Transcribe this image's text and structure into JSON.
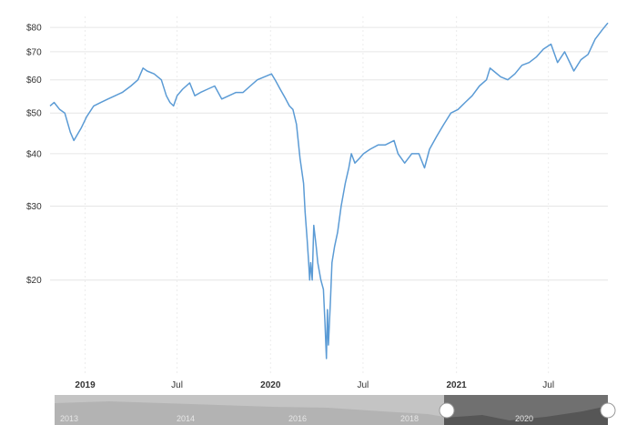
{
  "chart_data": {
    "type": "line",
    "y_scale": "log",
    "ylim": [
      12,
      85
    ],
    "grid": true,
    "y_ticks": [
      {
        "value": 20,
        "label": "$20"
      },
      {
        "value": 30,
        "label": "$30"
      },
      {
        "value": 40,
        "label": "$40"
      },
      {
        "value": 50,
        "label": "$50"
      },
      {
        "value": 60,
        "label": "$60"
      },
      {
        "value": 70,
        "label": "$70"
      },
      {
        "value": 80,
        "label": "$80"
      }
    ],
    "x_ticks": [
      {
        "date": "2019-01-01",
        "label": "2019",
        "bold": true
      },
      {
        "date": "2019-07-01",
        "label": "Jul",
        "bold": false
      },
      {
        "date": "2020-01-01",
        "label": "2020",
        "bold": true
      },
      {
        "date": "2020-07-01",
        "label": "Jul",
        "bold": false
      },
      {
        "date": "2021-01-01",
        "label": "2021",
        "bold": true
      },
      {
        "date": "2021-07-01",
        "label": "Jul",
        "bold": false
      }
    ],
    "series": [
      {
        "color": "#5b9bd5",
        "points": [
          [
            "2018-10-24",
            52
          ],
          [
            "2018-11-01",
            53
          ],
          [
            "2018-11-12",
            51
          ],
          [
            "2018-11-22",
            50
          ],
          [
            "2018-12-03",
            45
          ],
          [
            "2018-12-10",
            43
          ],
          [
            "2018-12-24",
            46
          ],
          [
            "2019-01-04",
            49
          ],
          [
            "2019-01-18",
            52
          ],
          [
            "2019-02-01",
            53
          ],
          [
            "2019-02-15",
            54
          ],
          [
            "2019-03-01",
            55
          ],
          [
            "2019-03-15",
            56
          ],
          [
            "2019-04-01",
            58
          ],
          [
            "2019-04-15",
            60
          ],
          [
            "2019-04-25",
            64
          ],
          [
            "2019-05-03",
            63
          ],
          [
            "2019-05-17",
            62
          ],
          [
            "2019-05-31",
            60
          ],
          [
            "2019-06-10",
            55
          ],
          [
            "2019-06-17",
            53
          ],
          [
            "2019-06-24",
            52
          ],
          [
            "2019-07-01",
            55
          ],
          [
            "2019-07-12",
            57
          ],
          [
            "2019-07-26",
            59
          ],
          [
            "2019-08-05",
            55
          ],
          [
            "2019-08-16",
            56
          ],
          [
            "2019-08-30",
            57
          ],
          [
            "2019-09-13",
            58
          ],
          [
            "2019-09-27",
            54
          ],
          [
            "2019-10-11",
            55
          ],
          [
            "2019-10-25",
            56
          ],
          [
            "2019-11-08",
            56
          ],
          [
            "2019-11-22",
            58
          ],
          [
            "2019-12-06",
            60
          ],
          [
            "2019-12-20",
            61
          ],
          [
            "2020-01-03",
            62
          ],
          [
            "2020-01-10",
            60
          ],
          [
            "2020-01-20",
            57
          ],
          [
            "2020-01-31",
            54
          ],
          [
            "2020-02-07",
            52
          ],
          [
            "2020-02-14",
            51
          ],
          [
            "2020-02-21",
            47
          ],
          [
            "2020-02-28",
            39
          ],
          [
            "2020-03-06",
            34
          ],
          [
            "2020-03-09",
            29
          ],
          [
            "2020-03-13",
            25
          ],
          [
            "2020-03-16",
            22
          ],
          [
            "2020-03-18",
            20
          ],
          [
            "2020-03-20",
            22
          ],
          [
            "2020-03-23",
            20
          ],
          [
            "2020-03-26",
            27
          ],
          [
            "2020-03-31",
            24
          ],
          [
            "2020-04-03",
            22
          ],
          [
            "2020-04-09",
            20
          ],
          [
            "2020-04-14",
            19
          ],
          [
            "2020-04-17",
            16
          ],
          [
            "2020-04-20",
            13
          ],
          [
            "2020-04-22",
            17
          ],
          [
            "2020-04-24",
            14
          ],
          [
            "2020-04-28",
            18
          ],
          [
            "2020-05-01",
            22
          ],
          [
            "2020-05-06",
            24
          ],
          [
            "2020-05-12",
            26
          ],
          [
            "2020-05-19",
            30
          ],
          [
            "2020-05-27",
            34
          ],
          [
            "2020-06-03",
            37
          ],
          [
            "2020-06-08",
            40
          ],
          [
            "2020-06-15",
            38
          ],
          [
            "2020-06-24",
            39
          ],
          [
            "2020-07-02",
            40
          ],
          [
            "2020-07-15",
            41
          ],
          [
            "2020-07-31",
            42
          ],
          [
            "2020-08-14",
            42
          ],
          [
            "2020-08-31",
            43
          ],
          [
            "2020-09-08",
            40
          ],
          [
            "2020-09-21",
            38
          ],
          [
            "2020-10-05",
            40
          ],
          [
            "2020-10-19",
            40
          ],
          [
            "2020-10-30",
            37
          ],
          [
            "2020-11-09",
            41
          ],
          [
            "2020-11-23",
            44
          ],
          [
            "2020-12-07",
            47
          ],
          [
            "2020-12-21",
            50
          ],
          [
            "2021-01-04",
            51
          ],
          [
            "2021-01-18",
            53
          ],
          [
            "2021-02-01",
            55
          ],
          [
            "2021-02-15",
            58
          ],
          [
            "2021-03-01",
            60
          ],
          [
            "2021-03-08",
            64
          ],
          [
            "2021-03-15",
            63
          ],
          [
            "2021-03-29",
            61
          ],
          [
            "2021-04-12",
            60
          ],
          [
            "2021-04-26",
            62
          ],
          [
            "2021-05-10",
            65
          ],
          [
            "2021-05-24",
            66
          ],
          [
            "2021-06-07",
            68
          ],
          [
            "2021-06-21",
            71
          ],
          [
            "2021-07-06",
            73
          ],
          [
            "2021-07-19",
            66
          ],
          [
            "2021-08-02",
            70
          ],
          [
            "2021-08-20",
            63
          ],
          [
            "2021-09-03",
            67
          ],
          [
            "2021-09-17",
            69
          ],
          [
            "2021-10-01",
            75
          ],
          [
            "2021-10-15",
            79
          ],
          [
            "2021-10-26",
            82
          ]
        ]
      }
    ]
  },
  "navigator": {
    "labels": [
      "2013",
      "2014",
      "2016",
      "2018",
      "2020"
    ],
    "series_fill": "#b3b3b3",
    "selected_fill": "#707070"
  }
}
